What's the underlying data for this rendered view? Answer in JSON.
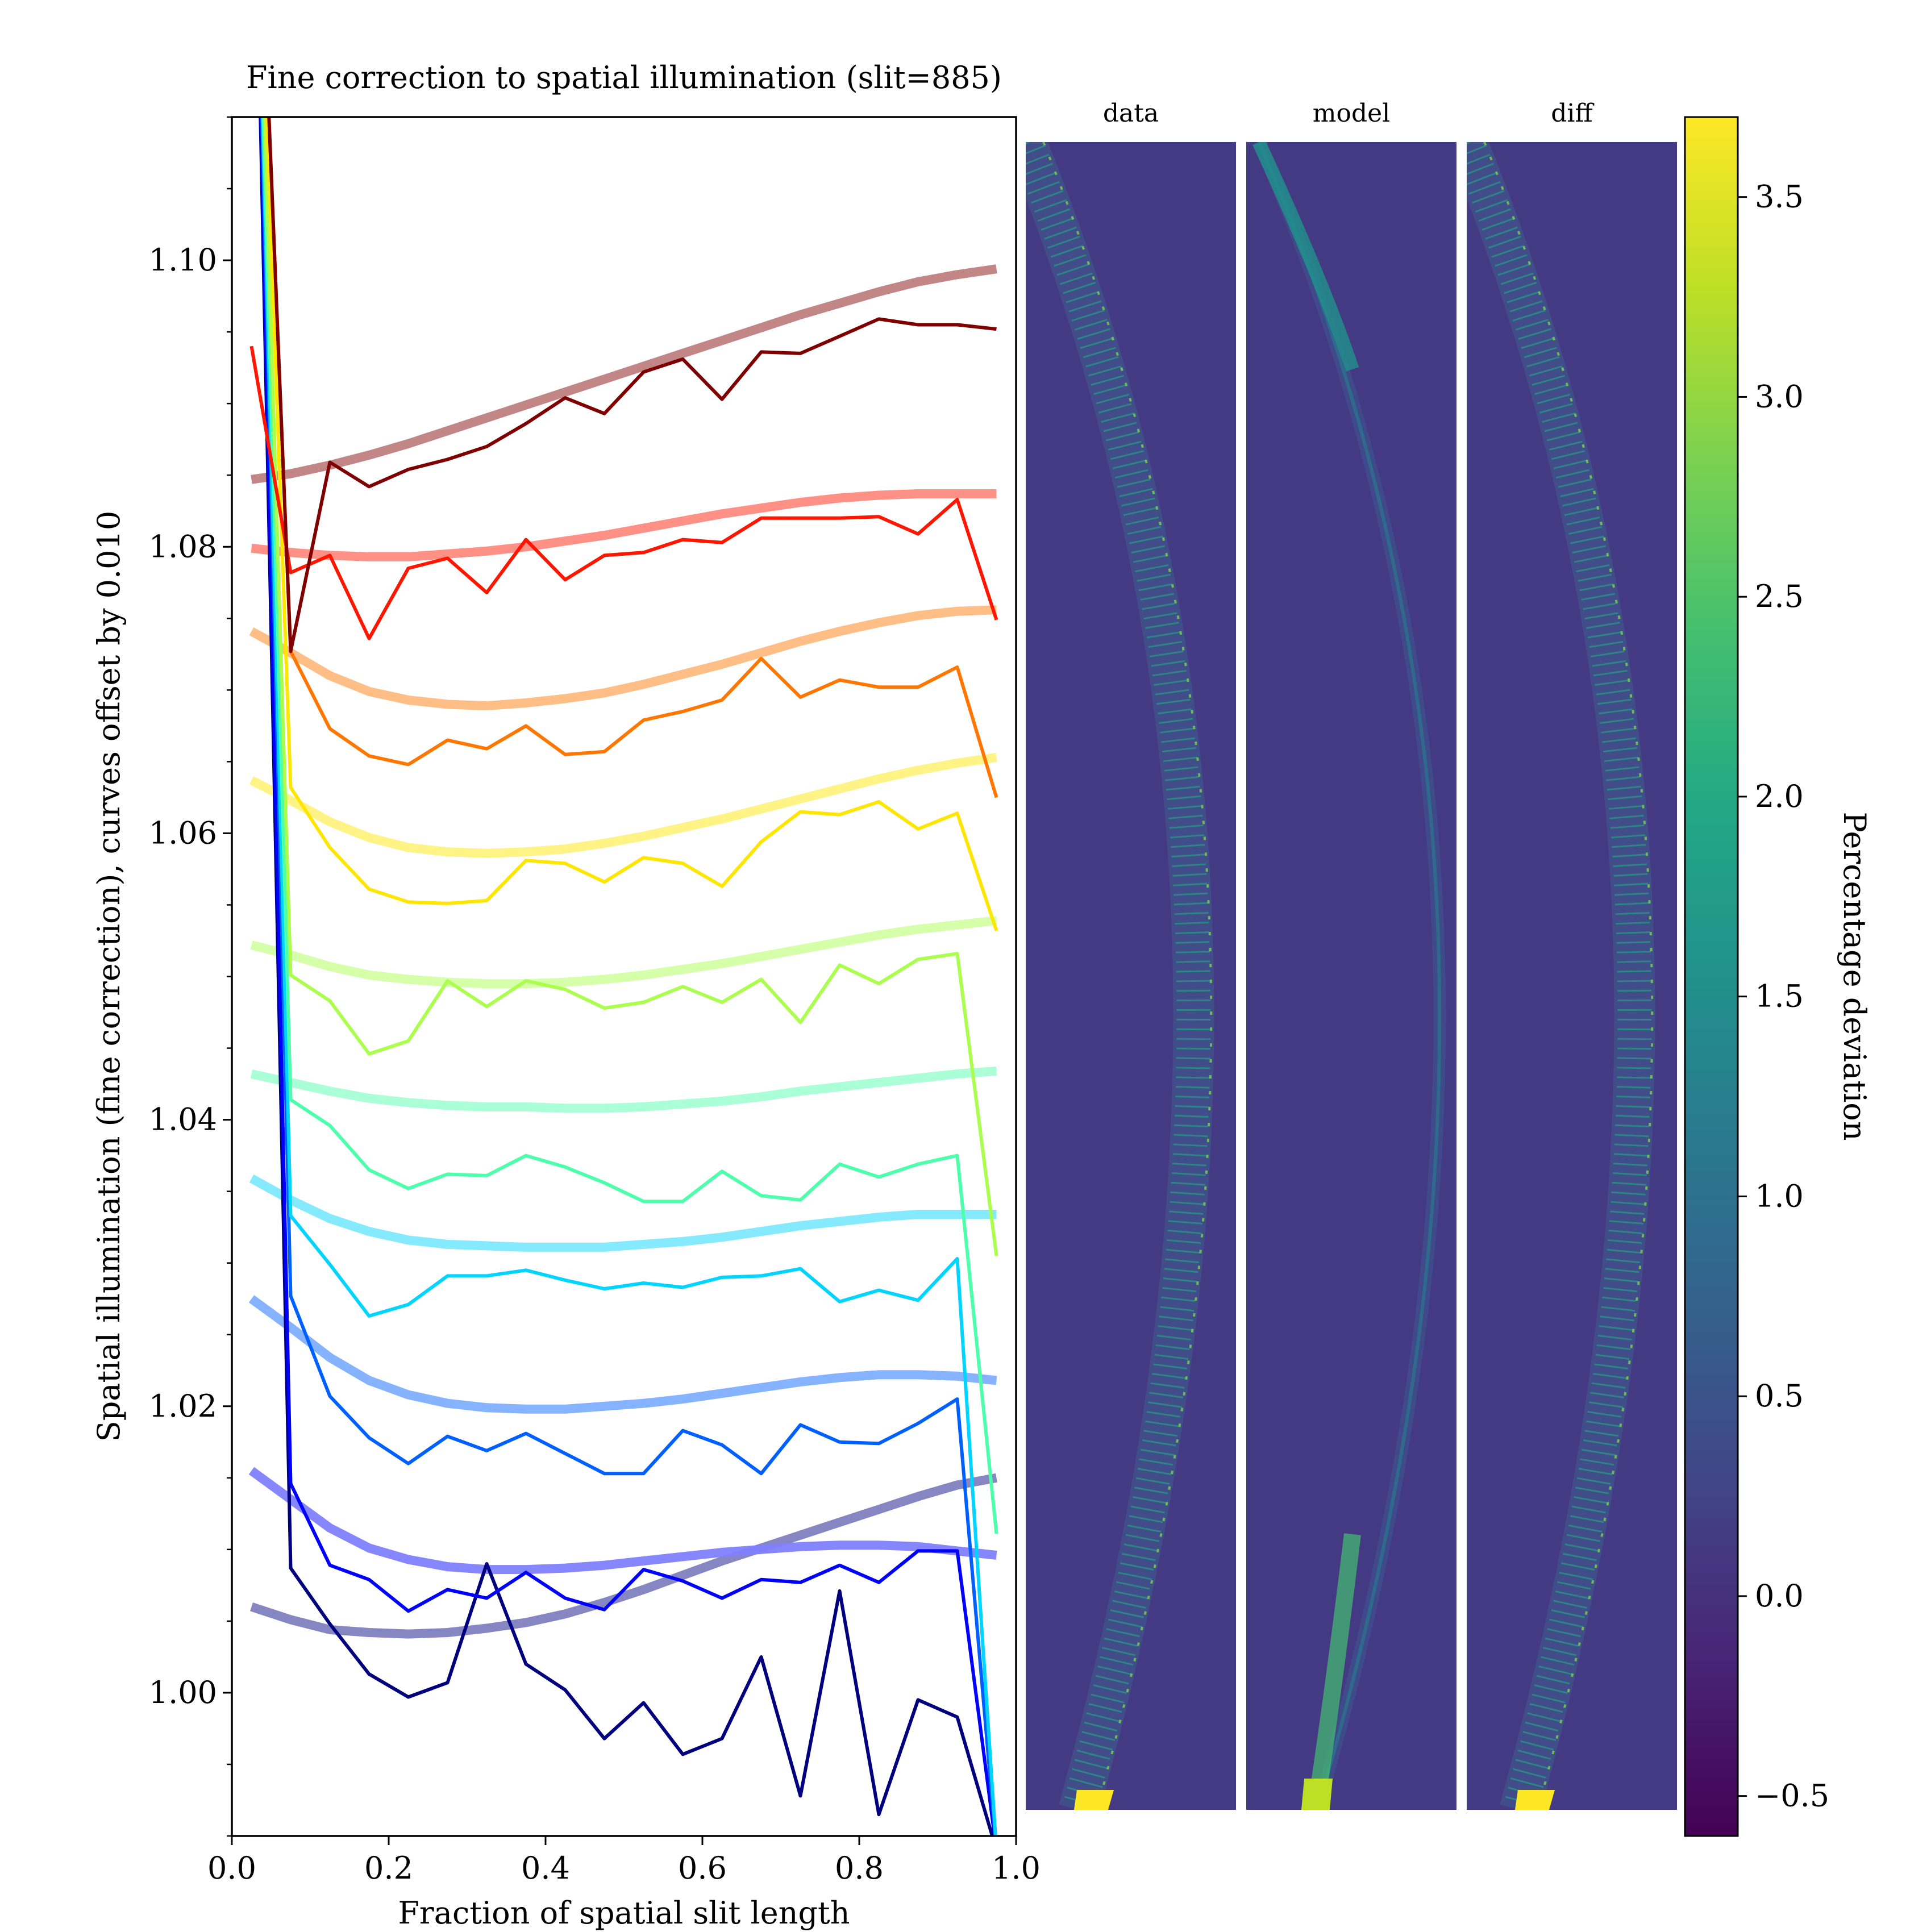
{
  "chart_data": [
    {
      "type": "line",
      "title": "Fine correction to spatial illumination (slit=885)",
      "xlabel": "Fraction of spatial slit length",
      "ylabel": "Spatial illumination (fine correction), curves offset by 0.010",
      "xlim": [
        0.0,
        1.0
      ],
      "ylim": [
        0.99,
        1.11
      ],
      "x_ticks": [
        0.0,
        0.2,
        0.4,
        0.6,
        0.8,
        1.0
      ],
      "x_tick_labels": [
        "0.0",
        "0.2",
        "0.4",
        "0.6",
        "0.8",
        "1.0"
      ],
      "y_ticks": [
        1.0,
        1.02,
        1.04,
        1.06,
        1.08,
        1.1
      ],
      "y_tick_labels": [
        "1.00",
        "1.02",
        "1.04",
        "1.06",
        "1.08",
        "1.10"
      ],
      "grid": false,
      "legend": "none",
      "x": [
        0.025,
        0.075,
        0.125,
        0.175,
        0.225,
        0.275,
        0.325,
        0.375,
        0.425,
        0.475,
        0.525,
        0.575,
        0.625,
        0.675,
        0.725,
        0.775,
        0.825,
        0.875,
        0.925,
        0.975
      ],
      "model_x": [
        0.025,
        0.075,
        0.125,
        0.175,
        0.225,
        0.275,
        0.325,
        0.375,
        0.425,
        0.475,
        0.525,
        0.575,
        0.625,
        0.675,
        0.725,
        0.775,
        0.825,
        0.875,
        0.925,
        0.975
      ],
      "series": [
        {
          "color": "#00007f",
          "data": [
            1.14,
            1.0087,
            1.0048,
            1.0013,
            0.9997,
            1.0007,
            1.009,
            1.002,
            1.0002,
            0.9968,
            0.9993,
            0.9957,
            0.9968,
            1.0025,
            0.9928,
            1.0071,
            0.9915,
            0.9995,
            0.9983,
            0.989
          ],
          "model": [
            1.006,
            1.0051,
            1.0044,
            1.0042,
            1.0041,
            1.0042,
            1.0045,
            1.0049,
            1.0055,
            1.0063,
            1.0072,
            1.0082,
            1.0092,
            1.0101,
            1.011,
            1.0119,
            1.0128,
            1.0137,
            1.0145,
            1.015
          ],
          "model_color": "#7f7fbf"
        },
        {
          "color": "#0000ff",
          "data": [
            1.14,
            1.0146,
            1.0089,
            1.0079,
            1.0057,
            1.0072,
            1.0066,
            1.0084,
            1.0066,
            1.0058,
            1.0086,
            1.0078,
            1.0066,
            1.0079,
            1.0077,
            1.0089,
            1.0077,
            1.0099,
            1.0099,
            0.989
          ],
          "model": [
            1.0155,
            1.0135,
            1.0115,
            1.0101,
            1.0093,
            1.0088,
            1.0086,
            1.0086,
            1.0087,
            1.0089,
            1.0092,
            1.0095,
            1.0098,
            1.01,
            1.0102,
            1.0103,
            1.0103,
            1.0102,
            1.0099,
            1.0096
          ],
          "model_color": "#7f7fff"
        },
        {
          "color": "#0060ff",
          "data": [
            1.14,
            1.0277,
            1.0207,
            1.0178,
            1.016,
            1.0179,
            1.0169,
            1.0181,
            1.0167,
            1.0153,
            1.0153,
            1.0183,
            1.0173,
            1.0153,
            1.0187,
            1.0175,
            1.0174,
            1.0188,
            1.0205,
            0.989
          ],
          "model": [
            1.0275,
            1.0255,
            1.0234,
            1.0218,
            1.0208,
            1.0202,
            1.0199,
            1.0198,
            1.0198,
            1.02,
            1.0202,
            1.0205,
            1.0209,
            1.0213,
            1.0217,
            1.022,
            1.0222,
            1.0222,
            1.0221,
            1.0218
          ],
          "model_color": "#7fafff"
        },
        {
          "color": "#00d4ff",
          "data": [
            1.14,
            1.0333,
            1.0299,
            1.0263,
            1.0271,
            1.0291,
            1.0291,
            1.0295,
            1.0288,
            1.0282,
            1.0286,
            1.0283,
            1.029,
            1.0291,
            1.0296,
            1.0273,
            1.0281,
            1.0274,
            1.0303,
            0.989
          ],
          "model": [
            1.0359,
            1.0344,
            1.0331,
            1.0322,
            1.0316,
            1.0313,
            1.0312,
            1.0311,
            1.0311,
            1.0311,
            1.0313,
            1.0315,
            1.0318,
            1.0322,
            1.0326,
            1.0329,
            1.0332,
            1.0334,
            1.0334,
            1.0334
          ],
          "model_color": "#7fe9ff"
        },
        {
          "color": "#4cffaa",
          "data": [
            1.14,
            1.0414,
            1.0396,
            1.0365,
            1.0352,
            1.0362,
            1.0361,
            1.0375,
            1.0367,
            1.0356,
            1.0343,
            1.0343,
            1.0364,
            1.0347,
            1.0344,
            1.0369,
            1.036,
            1.0369,
            1.0375,
            1.0111
          ],
          "model": [
            1.0432,
            1.0426,
            1.042,
            1.0415,
            1.0412,
            1.041,
            1.0409,
            1.0409,
            1.0408,
            1.0408,
            1.0409,
            1.0411,
            1.0413,
            1.0416,
            1.042,
            1.0423,
            1.0426,
            1.0429,
            1.0432,
            1.0434
          ],
          "model_color": "#a5ffd4"
        },
        {
          "color": "#aaff4c",
          "data": [
            1.14,
            1.0501,
            1.0483,
            1.0446,
            1.0455,
            1.0497,
            1.0479,
            1.0497,
            1.0491,
            1.0478,
            1.0482,
            1.0493,
            1.0482,
            1.0498,
            1.0468,
            1.0508,
            1.0495,
            1.0512,
            1.0516,
            1.0305
          ],
          "model": [
            1.0522,
            1.0515,
            1.0507,
            1.0501,
            1.0498,
            1.0496,
            1.0495,
            1.0495,
            1.0496,
            1.0498,
            1.0501,
            1.0505,
            1.0509,
            1.0514,
            1.0519,
            1.0524,
            1.0529,
            1.0533,
            1.0536,
            1.0539
          ],
          "model_color": "#d4ffa5"
        },
        {
          "color": "#ffe600",
          "data": [
            1.14,
            1.0632,
            1.059,
            1.0561,
            1.0552,
            1.0551,
            1.0553,
            1.0581,
            1.0579,
            1.0566,
            1.0583,
            1.0579,
            1.0563,
            1.0594,
            1.0615,
            1.0613,
            1.0622,
            1.0603,
            1.0614,
            1.0532
          ],
          "model": [
            1.0637,
            1.0623,
            1.0608,
            1.0597,
            1.059,
            1.0587,
            1.0586,
            1.0587,
            1.0589,
            1.0593,
            1.0598,
            1.0604,
            1.061,
            1.0617,
            1.0624,
            1.0631,
            1.0638,
            1.0644,
            1.0649,
            1.0653
          ],
          "model_color": "#fff27f"
        },
        {
          "color": "#ff7700",
          "data": [
            1.14,
            1.0727,
            1.0673,
            1.0654,
            1.0648,
            1.0665,
            1.0659,
            1.0675,
            1.0655,
            1.0657,
            1.0679,
            1.0685,
            1.0693,
            1.0722,
            1.0695,
            1.0707,
            1.0702,
            1.0702,
            1.0716,
            1.0625
          ],
          "model": [
            1.0741,
            1.0726,
            1.071,
            1.0699,
            1.0693,
            1.069,
            1.0689,
            1.0691,
            1.0694,
            1.0698,
            1.0704,
            1.0711,
            1.0718,
            1.0726,
            1.0734,
            1.0741,
            1.0747,
            1.0752,
            1.0755,
            1.0756
          ],
          "model_color": "#ffbb7f"
        },
        {
          "color": "#ff1600",
          "data": [
            1.094,
            1.0782,
            1.0794,
            1.0736,
            1.0785,
            1.0792,
            1.0768,
            1.0805,
            1.0777,
            1.0794,
            1.0796,
            1.0805,
            1.0803,
            1.082,
            1.082,
            1.082,
            1.0821,
            1.0809,
            1.0833,
            1.0749
          ],
          "model": [
            1.0799,
            1.0796,
            1.0794,
            1.0793,
            1.0793,
            1.0795,
            1.0797,
            1.08,
            1.0804,
            1.0808,
            1.0813,
            1.0818,
            1.0823,
            1.0827,
            1.0831,
            1.0834,
            1.0836,
            1.0837,
            1.0837,
            1.0837
          ],
          "model_color": "#ff8a7f"
        },
        {
          "color": "#7f0000",
          "data": [
            1.14,
            1.0727,
            1.0859,
            1.0842,
            1.0854,
            1.0861,
            1.087,
            1.0886,
            1.0904,
            1.0893,
            1.0922,
            1.0931,
            1.0903,
            1.0936,
            1.0935,
            1.0947,
            1.0959,
            1.0955,
            1.0955,
            1.0952
          ],
          "model": [
            1.0847,
            1.0851,
            1.0857,
            1.0864,
            1.0872,
            1.0881,
            1.089,
            1.0899,
            1.0908,
            1.0917,
            1.0926,
            1.0935,
            1.0944,
            1.0953,
            1.0962,
            1.097,
            1.0978,
            1.0985,
            1.099,
            1.0994
          ],
          "model_color": "#bf7f7f"
        }
      ]
    },
    {
      "type": "heatmap",
      "panels": [
        {
          "title": "data"
        },
        {
          "title": "model"
        },
        {
          "title": "diff"
        }
      ],
      "colorbar": {
        "label": "Percentage deviation",
        "range": [
          -0.6,
          3.7
        ],
        "ticks": [
          -0.5,
          0.0,
          0.5,
          1.0,
          1.5,
          2.0,
          2.5,
          3.0,
          3.5
        ],
        "tick_labels": [
          "−0.5",
          "0.0",
          "0.5",
          "1.0",
          "1.5",
          "2.0",
          "2.5",
          "3.0",
          "3.5"
        ],
        "colormap": "viridis"
      },
      "background_color": "#443983"
    }
  ]
}
